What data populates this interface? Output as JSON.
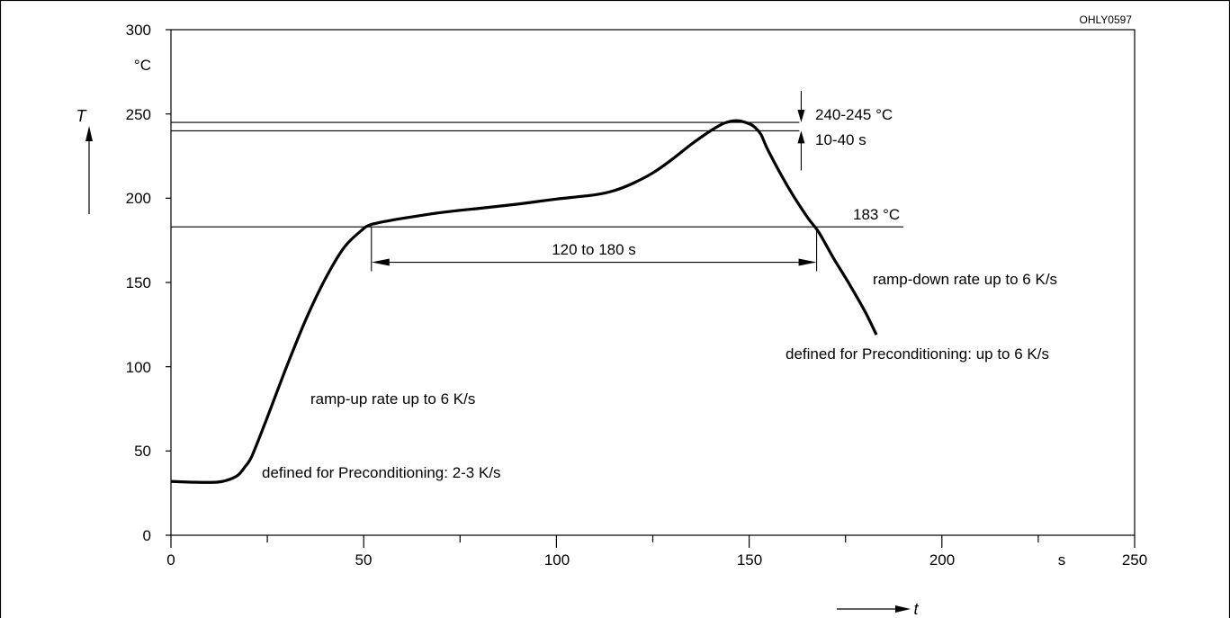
{
  "chart_data": {
    "type": "line",
    "figure_code": "OHLY0597",
    "xlim": [
      0,
      250
    ],
    "ylim": [
      0,
      300
    ],
    "x_ticks": [
      0,
      50,
      100,
      150,
      200,
      250
    ],
    "y_ticks": [
      0,
      50,
      100,
      150,
      200,
      250,
      300
    ],
    "x_unit": "s",
    "y_unit": "°C",
    "x_axis_var": "t",
    "y_axis_var": "T",
    "grid": false,
    "series": [
      {
        "x": [
          0,
          5,
          12,
          15,
          17,
          18,
          19,
          21,
          25,
          30,
          35,
          40,
          45,
          50,
          51,
          52,
          53,
          55,
          60,
          70,
          80,
          90,
          100,
          110,
          115,
          120,
          125,
          130,
          135,
          140,
          143,
          145,
          147,
          149,
          151,
          153,
          155,
          160,
          165,
          168,
          172,
          176,
          180,
          183
        ],
        "y": [
          32,
          31.5,
          31.5,
          33,
          35,
          37,
          40,
          47,
          70,
          100,
          128,
          152,
          171,
          182,
          183.5,
          184.5,
          185,
          186,
          188,
          191.5,
          194,
          196.5,
          199.5,
          202,
          204.5,
          209,
          215,
          223,
          232,
          240,
          244,
          245.5,
          246,
          245,
          243,
          238,
          228,
          207,
          189,
          180,
          164,
          149,
          133,
          119
        ]
      }
    ],
    "reference_lines": [
      {
        "y": 245,
        "x_end": 163
      },
      {
        "y": 240,
        "x_end": 163
      },
      {
        "y": 183,
        "x_end": 190
      }
    ],
    "span": {
      "x_start": 52,
      "x_end": 167.5,
      "y": 162,
      "label": "120 to 180 s"
    },
    "range_marker": {
      "x": 163.5,
      "y_low": 240,
      "y_high": 245
    }
  },
  "labels": {
    "tick_0": "0",
    "tick_50": "50",
    "tick_100": "100",
    "tick_150": "150",
    "tick_200": "200",
    "tick_250": "250",
    "tick_300": "300",
    "y_unit": "°C",
    "x_unit": "s",
    "y_var": "T",
    "x_var": "t",
    "code": "OHLY0597",
    "temp_peak": "240-245 °C",
    "time_peak": "10-40 s",
    "temp_183": "183 °C",
    "span": "120 to 180 s",
    "ramp_down": "ramp-down rate up to 6 K/s",
    "ramp_down_pre": "defined for Preconditioning: up to 6 K/s",
    "ramp_up": "ramp-up rate up to 6 K/s",
    "ramp_up_pre": "defined for Preconditioning: 2-3 K/s"
  }
}
